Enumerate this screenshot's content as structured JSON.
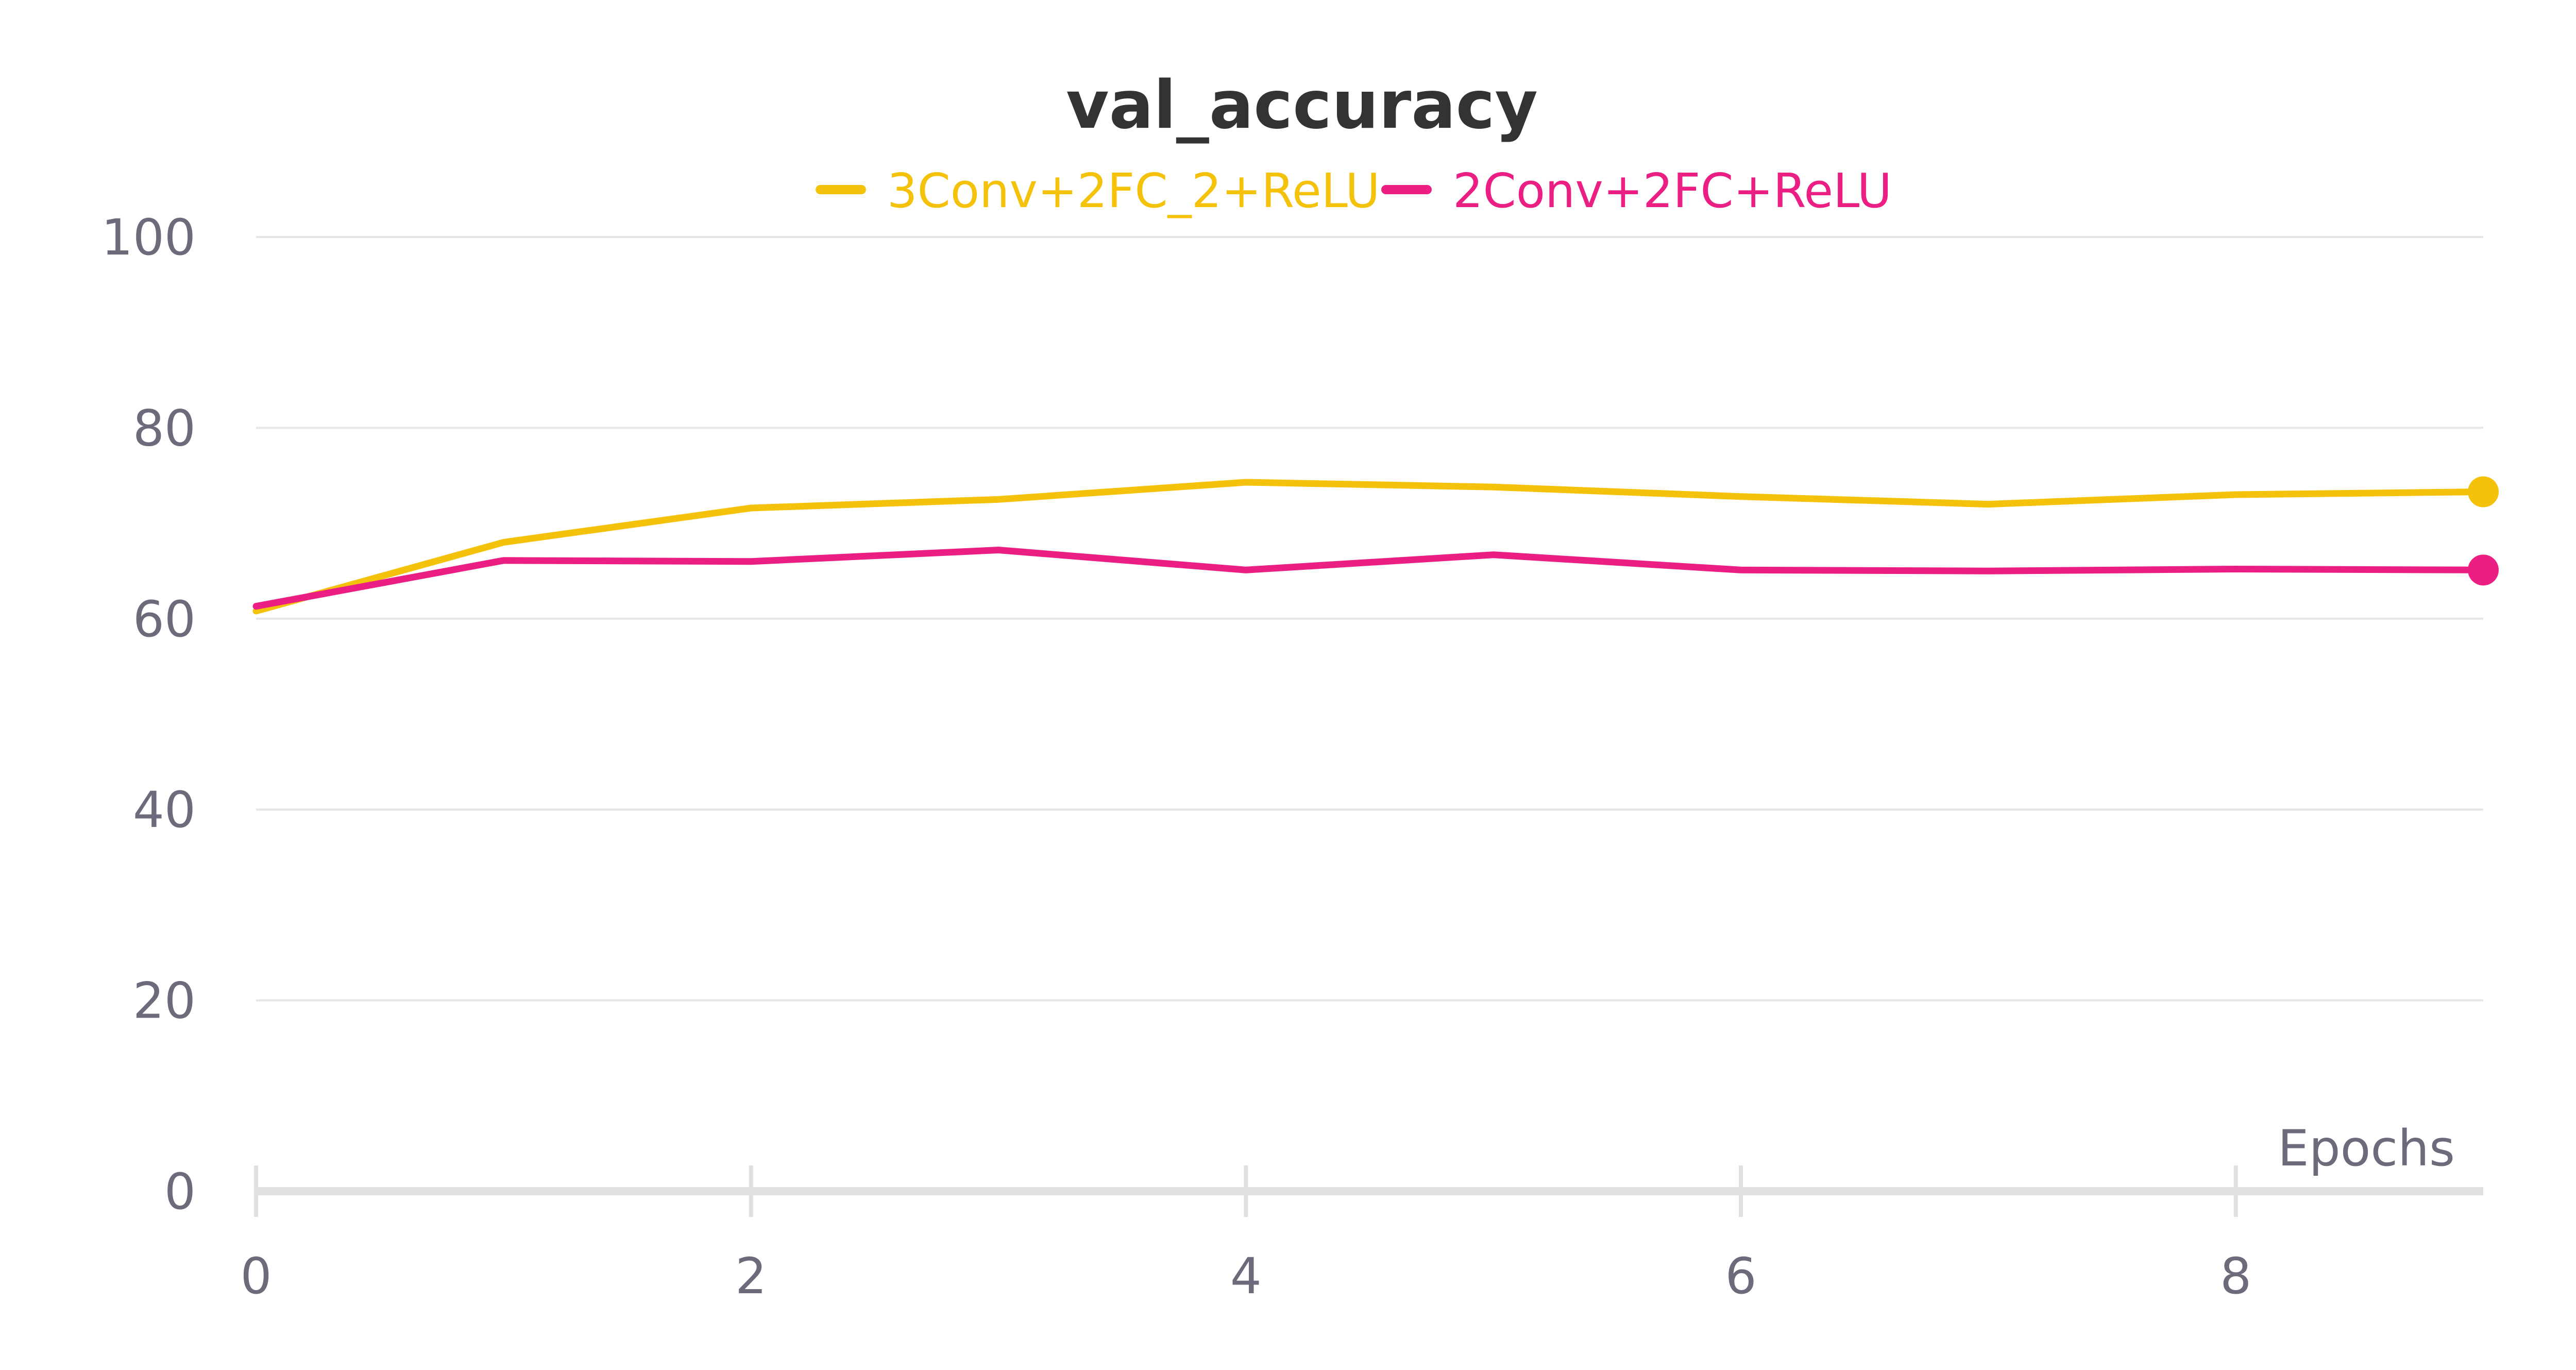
{
  "chart_data": {
    "type": "line",
    "title": "val_accuracy",
    "xlabel": "Epochs",
    "ylabel": "",
    "xlim": [
      0,
      9
    ],
    "ylim": [
      0,
      100
    ],
    "x_ticks": [
      0,
      2,
      4,
      6,
      8
    ],
    "y_ticks": [
      0,
      20,
      40,
      60,
      80,
      100
    ],
    "grid": true,
    "legend_position": "top-center",
    "x": [
      0,
      1,
      2,
      3,
      4,
      5,
      6,
      7,
      8,
      9
    ],
    "series": [
      {
        "name": "3Conv+2FC_2+ReLU",
        "color": "#f5c20b",
        "values": [
          60.8,
          68.0,
          71.6,
          72.5,
          74.3,
          73.8,
          72.8,
          72.0,
          73.0,
          73.3
        ]
      },
      {
        "name": "2Conv+2FC+ReLU",
        "color": "#eb1f83",
        "values": [
          61.3,
          66.1,
          66.0,
          67.2,
          65.1,
          66.7,
          65.1,
          65.0,
          65.2,
          65.1
        ]
      }
    ]
  }
}
